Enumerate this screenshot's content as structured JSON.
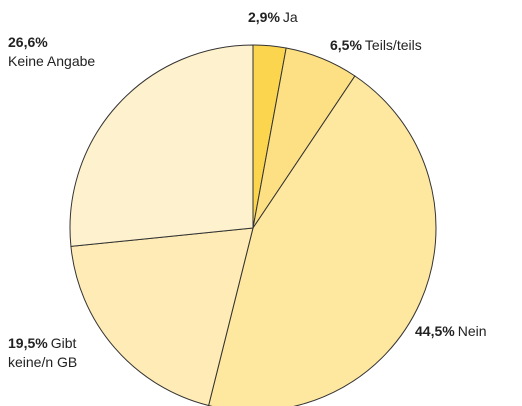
{
  "chart_data": {
    "type": "pie",
    "categories": [
      "Ja",
      "Teils/teils",
      "Nein",
      "Gibt keine/n GB",
      "Keine Angabe"
    ],
    "values": [
      2.9,
      6.5,
      44.5,
      19.5,
      26.6
    ],
    "value_labels": [
      "2,9%",
      "6,5%",
      "44,5%",
      "19,5%",
      "26,6%"
    ],
    "colors": [
      "#fbd54e",
      "#fde084",
      "#fee79f",
      "#feebb5",
      "#fef1cd"
    ]
  }
}
